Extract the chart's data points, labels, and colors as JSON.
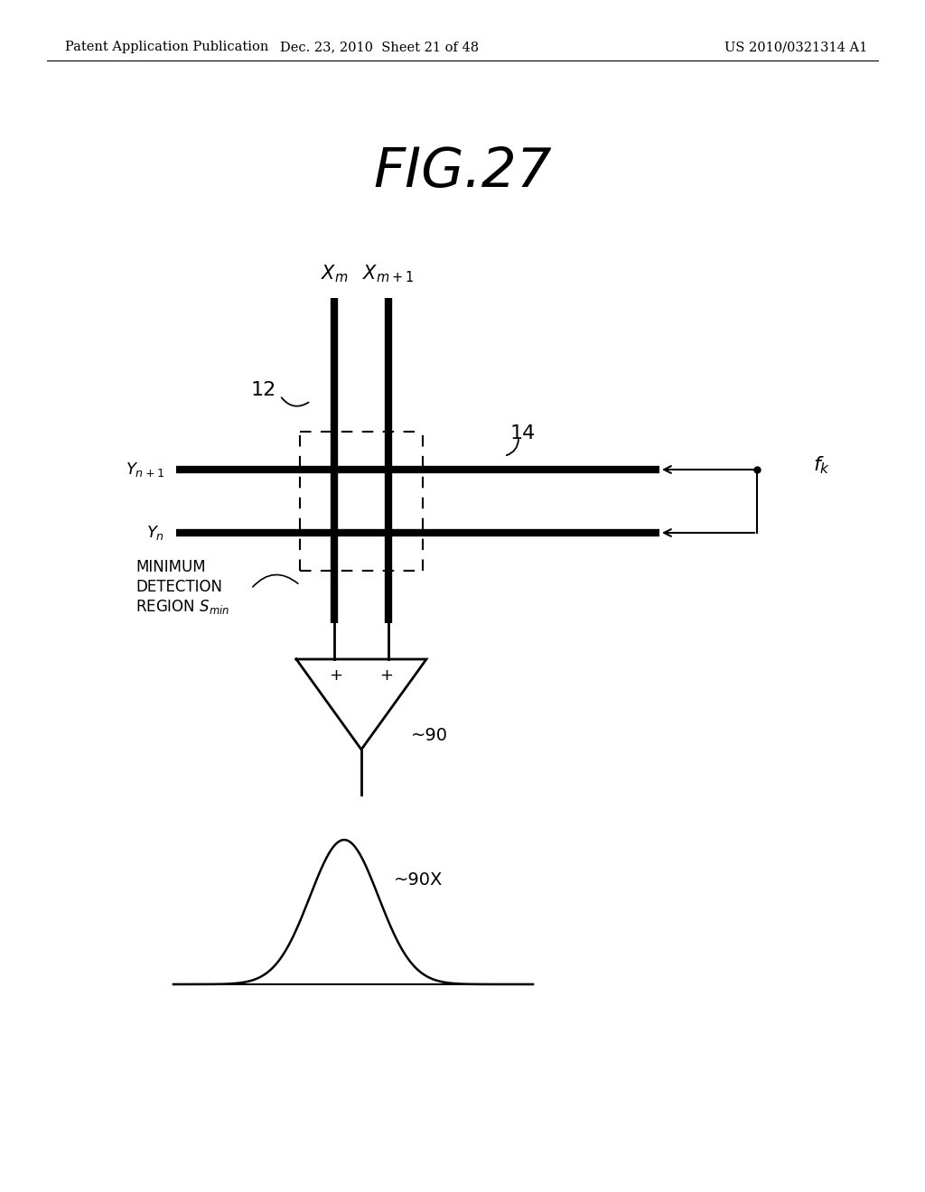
{
  "title": "FIG.27",
  "header_left": "Patent Application Publication",
  "header_center": "Dec. 23, 2010  Sheet 21 of 48",
  "header_right": "US 2010/0321314 A1",
  "bg_color": "#ffffff",
  "fig_title_fontsize": 44,
  "header_fontsize": 10.5
}
